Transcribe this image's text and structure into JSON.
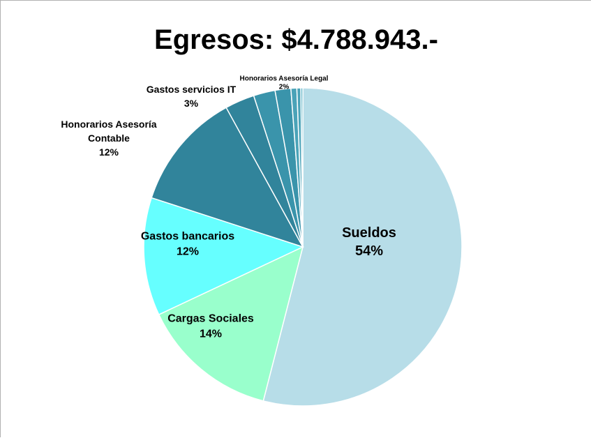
{
  "chart_data": {
    "type": "pie",
    "title": "Egresos: $4.788.943.-",
    "slices": [
      {
        "name": "Sueldos",
        "label": "54%",
        "value": 54,
        "color": "#b7dde8"
      },
      {
        "name": "Cargas Sociales",
        "label": "14%",
        "value": 14,
        "color": "#99ffcc"
      },
      {
        "name": "Gastos bancarios",
        "label": "12%",
        "value": 12,
        "color": "#66ffff"
      },
      {
        "name": "Honorarios Asesoría Contable",
        "label": "12%",
        "value": 12,
        "color": "#31849b"
      },
      {
        "name": "Gastos servicios IT",
        "label": "3%",
        "value": 3,
        "color": "#31849b"
      },
      {
        "name": "",
        "label": "",
        "value": 2.2,
        "color": "#3a94ab"
      },
      {
        "name": "Honorarios Asesoría Legal",
        "label": "2%",
        "value": 1.6,
        "color": "#3a94ab"
      },
      {
        "name": "",
        "label": "",
        "value": 0.6,
        "color": "#4aa3b8"
      },
      {
        "name": "",
        "label": "",
        "value": 0.4,
        "color": "#4aa3b8"
      },
      {
        "name": "",
        "label": "",
        "value": 0.2,
        "color": "#5cb3c6"
      }
    ]
  }
}
